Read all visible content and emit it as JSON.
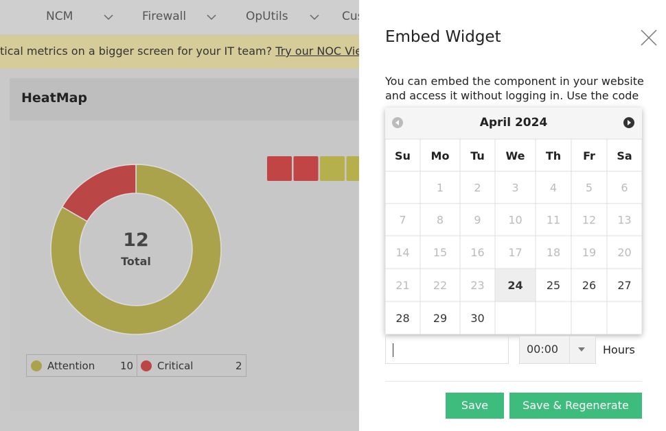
{
  "nav": {
    "items": [
      "NCM",
      "Firewall",
      "OpUtils",
      "Cus"
    ]
  },
  "banner": {
    "text": "tical metrics on a bigger screen for your IT team?",
    "link": "Try our NOC View.",
    "tail": "."
  },
  "heatmap": {
    "title": "HeatMap",
    "total": 12,
    "total_label": "Total",
    "legend": [
      {
        "name": "Attention",
        "value": 10,
        "color": "#aaa34c"
      },
      {
        "name": "Critical",
        "value": 2,
        "color": "#bb4646"
      }
    ],
    "cells": [
      "#c24545",
      "#c24545",
      "#b6b04c",
      "#b6b04c"
    ]
  },
  "dialog": {
    "title": "Embed Widget",
    "description": [
      "You can embed the component in your website",
      "and access it without logging in. Use the code"
    ],
    "calendar": {
      "month": "April 2024",
      "weekdays": [
        "Su",
        "Mo",
        "Tu",
        "We",
        "Th",
        "Fr",
        "Sa"
      ],
      "weeks": [
        [
          null,
          1,
          2,
          3,
          4,
          5,
          6
        ],
        [
          7,
          8,
          9,
          10,
          11,
          12,
          13
        ],
        [
          14,
          15,
          16,
          17,
          18,
          19,
          20
        ],
        [
          21,
          22,
          23,
          24,
          25,
          26,
          27
        ],
        [
          28,
          29,
          30,
          null,
          null,
          null,
          null
        ]
      ],
      "today": 24
    },
    "time": {
      "value": "00:00",
      "unit": "Hours"
    },
    "buttons": [
      "Save",
      "Save & Regenerate"
    ]
  }
}
